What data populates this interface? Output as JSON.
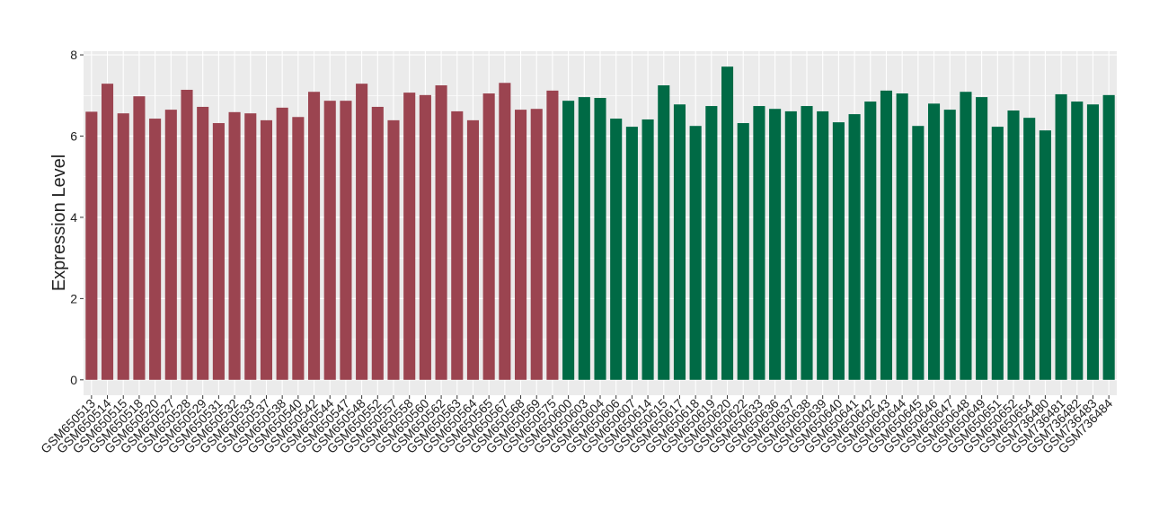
{
  "chart_data": {
    "type": "bar",
    "y_label": "Expression Level",
    "categories": [
      "GSM650513",
      "GSM650514",
      "GSM650515",
      "GSM650518",
      "GSM650520",
      "GSM650527",
      "GSM650528",
      "GSM650529",
      "GSM650531",
      "GSM650532",
      "GSM650533",
      "GSM650537",
      "GSM650538",
      "GSM650540",
      "GSM650542",
      "GSM650544",
      "GSM650547",
      "GSM650548",
      "GSM650552",
      "GSM650557",
      "GSM650558",
      "GSM650560",
      "GSM650562",
      "GSM650563",
      "GSM650564",
      "GSM650565",
      "GSM650567",
      "GSM650568",
      "GSM650569",
      "GSM650575",
      "GSM650600",
      "GSM650603",
      "GSM650604",
      "GSM650606",
      "GSM650607",
      "GSM650614",
      "GSM650615",
      "GSM650617",
      "GSM650618",
      "GSM650619",
      "GSM650620",
      "GSM650622",
      "GSM650633",
      "GSM650636",
      "GSM650637",
      "GSM650638",
      "GSM650639",
      "GSM650640",
      "GSM650641",
      "GSM650642",
      "GSM650643",
      "GSM650644",
      "GSM650645",
      "GSM650646",
      "GSM650647",
      "GSM650648",
      "GSM650649",
      "GSM650651",
      "GSM650652",
      "GSM650654",
      "GSM736480",
      "GSM736481",
      "GSM736482",
      "GSM736483",
      "GSM736484"
    ],
    "values": [
      6.6,
      7.29,
      6.56,
      6.98,
      6.43,
      6.65,
      7.14,
      6.72,
      6.32,
      6.59,
      6.56,
      6.39,
      6.7,
      6.47,
      7.09,
      6.87,
      6.87,
      7.29,
      6.72,
      6.39,
      7.07,
      7.01,
      7.25,
      6.61,
      6.39,
      7.05,
      7.31,
      6.65,
      6.67,
      7.12,
      6.87,
      6.96,
      6.94,
      6.43,
      6.23,
      6.41,
      7.25,
      6.78,
      6.25,
      6.74,
      7.71,
      6.32,
      6.74,
      6.67,
      6.61,
      6.74,
      6.61,
      6.34,
      6.54,
      6.85,
      7.12,
      7.05,
      6.25,
      6.8,
      6.65,
      7.09,
      6.96,
      6.23,
      6.63,
      6.45,
      6.14,
      7.03,
      6.85,
      6.78,
      7.01
    ],
    "colors": [
      "#9b4450",
      "#9b4450",
      "#9b4450",
      "#9b4450",
      "#9b4450",
      "#9b4450",
      "#9b4450",
      "#9b4450",
      "#9b4450",
      "#9b4450",
      "#9b4450",
      "#9b4450",
      "#9b4450",
      "#9b4450",
      "#9b4450",
      "#9b4450",
      "#9b4450",
      "#9b4450",
      "#9b4450",
      "#9b4450",
      "#9b4450",
      "#9b4450",
      "#9b4450",
      "#9b4450",
      "#9b4450",
      "#9b4450",
      "#9b4450",
      "#9b4450",
      "#9b4450",
      "#9b4450",
      "#006a45",
      "#006a45",
      "#006a45",
      "#006a45",
      "#006a45",
      "#006a45",
      "#006a45",
      "#006a45",
      "#006a45",
      "#006a45",
      "#006a45",
      "#006a45",
      "#006a45",
      "#006a45",
      "#006a45",
      "#006a45",
      "#006a45",
      "#006a45",
      "#006a45",
      "#006a45",
      "#006a45",
      "#006a45",
      "#006a45",
      "#006a45",
      "#006a45",
      "#006a45",
      "#006a45",
      "#006a45",
      "#006a45",
      "#006a45",
      "#006a45",
      "#006a45",
      "#006a45",
      "#006a45",
      "#006a45"
    ],
    "ylim": [
      -0.38,
      8.09
    ],
    "yticks": [
      0,
      2,
      4,
      6,
      8
    ],
    "grid": true
  }
}
